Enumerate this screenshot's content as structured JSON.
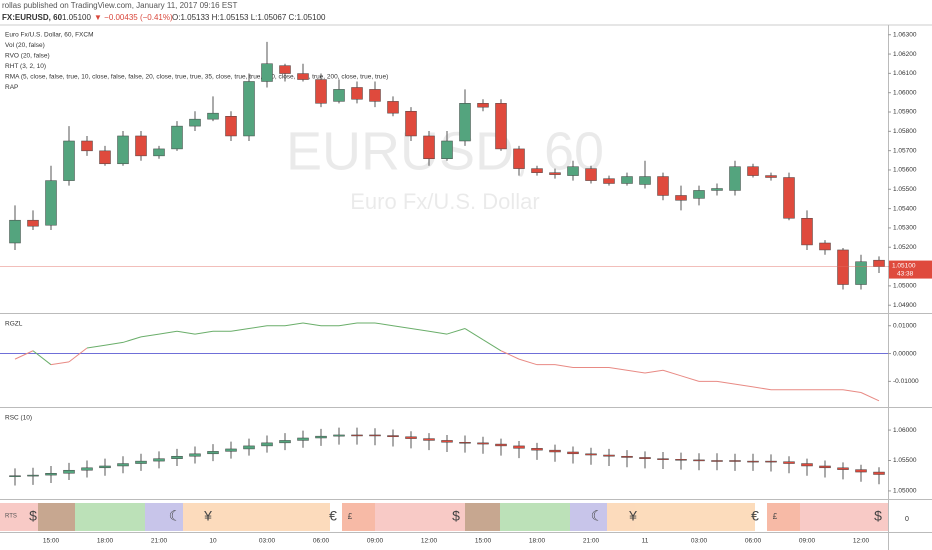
{
  "header": {
    "published": "rollas published on TradingView.com, January 11, 2017 09:16 EST",
    "symbol": "FX:EURUSD, 60",
    "price": "1.05100",
    "change": "▼ −0.00435 (−0.41%)",
    "ohlc": "O:1.05133 H:1.05153 L:1.05067 C:1.05100"
  },
  "chart_data": [
    {
      "type": "candlestick",
      "watermark": "EURUSD, 60",
      "watermark_sub": "Euro Fx/U.S. Dollar",
      "legend_lines": [
        "Euro Fx/U.S. Dollar, 60, FXCM",
        "Vol (20, false)",
        "RVO (20, false)",
        "RHT (3, 2, 10)",
        "RMA (5, close, false, true, 10, close, false, false, 20, close, true, true, 35, close, true, true, 100, close, true, true, 200, close, true, true)",
        "RAP"
      ],
      "countdown": "43:38",
      "up_color": "#54a47e",
      "down_color": "#df4a3d",
      "categories": [
        null,
        null,
        "15:00",
        null,
        null,
        "18:00",
        null,
        null,
        "21:00",
        null,
        null,
        "10",
        null,
        null,
        "03:00",
        null,
        null,
        "06:00",
        null,
        null,
        "09:00",
        null,
        null,
        "12:00",
        null,
        null,
        "15:00",
        null,
        null,
        "18:00",
        null,
        null,
        "21:00",
        null,
        null,
        "11",
        null,
        null,
        "03:00",
        null,
        null,
        "06:00",
        null,
        null,
        "09:00",
        null,
        null,
        "12:00",
        null
      ],
      "open": [
        1.05222,
        1.0534,
        1.05314,
        1.05545,
        1.0575,
        1.05699,
        1.05632,
        1.05776,
        1.05673,
        1.05709,
        1.05827,
        1.05863,
        1.05878,
        1.05776,
        1.06058,
        1.0614,
        1.06099,
        1.06068,
        1.05955,
        1.06027,
        1.06017,
        1.05955,
        1.05904,
        1.05776,
        1.05658,
        1.0575,
        1.05945,
        1.05945,
        1.05709,
        1.05607,
        1.05586,
        1.05571,
        1.05607,
        1.05555,
        1.0553,
        1.05525,
        1.05566,
        1.05468,
        1.05453,
        1.05494,
        1.05494,
        1.05617,
        1.05571,
        1.05561,
        1.0535,
        1.05222,
        1.05186,
        1.05007,
        1.05133
      ],
      "high": [
        1.05417,
        1.05391,
        1.05622,
        1.05827,
        1.05776,
        1.05725,
        1.05802,
        1.05802,
        1.05725,
        1.05853,
        1.05904,
        1.05981,
        1.05904,
        1.06099,
        1.06263,
        1.0615,
        1.0615,
        1.06099,
        1.06068,
        1.06058,
        1.06058,
        1.05981,
        1.05925,
        1.05802,
        1.05802,
        1.06017,
        1.05966,
        1.05966,
        1.05725,
        1.05622,
        1.05607,
        1.05648,
        1.05622,
        1.05571,
        1.05586,
        1.05648,
        1.05586,
        1.05519,
        1.05519,
        1.0553,
        1.05648,
        1.05632,
        1.05586,
        1.05586,
        1.05391,
        1.05237,
        1.05196,
        1.05161,
        1.05153
      ],
      "low": [
        1.05186,
        1.05289,
        1.05289,
        1.05519,
        1.05673,
        1.05622,
        1.05622,
        1.05648,
        1.05658,
        1.05699,
        1.05802,
        1.05853,
        1.0575,
        1.0575,
        1.06027,
        1.06058,
        1.06058,
        1.05925,
        1.05945,
        1.05945,
        1.05925,
        1.05878,
        1.0575,
        1.05622,
        1.05648,
        1.05725,
        1.05904,
        1.05699,
        1.05571,
        1.05571,
        1.05555,
        1.05545,
        1.0553,
        1.05519,
        1.05519,
        1.05504,
        1.05443,
        1.05391,
        1.05417,
        1.05468,
        1.05468,
        1.05561,
        1.05545,
        1.0534,
        1.05186,
        1.05161,
        1.04981,
        1.04981,
        1.05067
      ],
      "close": [
        1.0534,
        1.05309,
        1.05545,
        1.0575,
        1.05699,
        1.05632,
        1.05776,
        1.05673,
        1.05709,
        1.05827,
        1.05863,
        1.05894,
        1.05776,
        1.06058,
        1.0615,
        1.06099,
        1.06068,
        1.05945,
        1.06017,
        1.05966,
        1.05955,
        1.05894,
        1.05776,
        1.05658,
        1.0575,
        1.05945,
        1.05925,
        1.05709,
        1.05607,
        1.05586,
        1.05576,
        1.05617,
        1.05545,
        1.0553,
        1.05566,
        1.05566,
        1.05468,
        1.05443,
        1.05494,
        1.05504,
        1.05617,
        1.05571,
        1.05561,
        1.0535,
        1.05212,
        1.05186,
        1.05007,
        1.05125,
        1.051
      ],
      "ylim": [
        1.0487,
        1.0634
      ],
      "yticks": [
        {
          "value": 1.049,
          "label": "1.04900"
        },
        {
          "value": 1.05,
          "label": "1.05000"
        },
        {
          "value": 1.051,
          "label": "1.05100"
        },
        {
          "value": 1.052,
          "label": "1.05200"
        },
        {
          "value": 1.053,
          "label": "1.05300"
        },
        {
          "value": 1.054,
          "label": "1.05400"
        },
        {
          "value": 1.055,
          "label": "1.05500"
        },
        {
          "value": 1.056,
          "label": "1.05600"
        },
        {
          "value": 1.057,
          "label": "1.05700"
        },
        {
          "value": 1.058,
          "label": "1.05800"
        },
        {
          "value": 1.059,
          "label": "1.05900"
        },
        {
          "value": 1.06,
          "label": "1.06000"
        },
        {
          "value": 1.061,
          "label": "1.06100"
        },
        {
          "value": 1.062,
          "label": "1.06200"
        },
        {
          "value": 1.063,
          "label": "1.06300"
        }
      ]
    },
    {
      "type": "line",
      "title": "RGZL",
      "up_color": "#6aae6a",
      "down_color": "#e88a84",
      "zero_color": "#6f6fd8",
      "values": [
        -0.002,
        0.001,
        -0.004,
        -0.003,
        0.002,
        0.003,
        0.004,
        0.006,
        0.007,
        0.008,
        0.007,
        0.008,
        0.008,
        0.009,
        0.01,
        0.01,
        0.011,
        0.01,
        0.01,
        0.011,
        0.011,
        0.01,
        0.009,
        0.008,
        0.007,
        0.009,
        0.005,
        0.001,
        -0.002,
        -0.004,
        -0.004,
        -0.005,
        -0.005,
        -0.005,
        -0.006,
        -0.007,
        -0.006,
        -0.008,
        -0.01,
        -0.01,
        -0.011,
        -0.012,
        -0.013,
        -0.013,
        -0.013,
        -0.013,
        -0.013,
        -0.014,
        -0.017
      ],
      "ylim": [
        -0.0185,
        0.0135
      ],
      "yticks": [
        {
          "value": -0.01,
          "label": "-0.01000"
        },
        {
          "value": 0,
          "label": "0.00000"
        },
        {
          "value": 0.01,
          "label": "0.01000"
        }
      ]
    },
    {
      "type": "candlestick",
      "title": "RSC (10)",
      "up_color": "#54a47e",
      "down_color": "#df4a3d",
      "open": [
        1.0524,
        1.0525,
        1.0526,
        1.0529,
        1.0534,
        1.0538,
        1.0541,
        1.0545,
        1.0549,
        1.0553,
        1.0557,
        1.0561,
        1.0565,
        1.0569,
        1.0574,
        1.0579,
        1.0583,
        1.0587,
        1.059,
        1.0592,
        1.0592,
        1.0591,
        1.0589,
        1.0586,
        1.0583,
        1.058,
        1.0579,
        1.0577,
        1.0574,
        1.057,
        1.0567,
        1.0564,
        1.0561,
        1.0559,
        1.0557,
        1.0555,
        1.0553,
        1.0552,
        1.0551,
        1.055,
        1.055,
        1.0549,
        1.0549,
        1.0548,
        1.0545,
        1.0541,
        1.0538,
        1.0535,
        1.0531
      ],
      "high": [
        1.0537,
        1.0538,
        1.0541,
        1.0546,
        1.055,
        1.0553,
        1.0557,
        1.0561,
        1.0565,
        1.0569,
        1.0573,
        1.0577,
        1.0581,
        1.0586,
        1.0591,
        1.0595,
        1.0599,
        1.0602,
        1.0604,
        1.0604,
        1.0603,
        1.0601,
        1.0598,
        1.0595,
        1.0592,
        1.0591,
        1.0589,
        1.0586,
        1.0582,
        1.0579,
        1.0576,
        1.0573,
        1.0571,
        1.0569,
        1.0567,
        1.0565,
        1.0564,
        1.0563,
        1.0562,
        1.0562,
        1.0561,
        1.0561,
        1.056,
        1.0557,
        1.0553,
        1.055,
        1.0547,
        1.0543,
        1.0539
      ],
      "low": [
        1.0509,
        1.051,
        1.0513,
        1.0518,
        1.0522,
        1.0525,
        1.0529,
        1.0533,
        1.0537,
        1.0541,
        1.0545,
        1.0549,
        1.0553,
        1.0558,
        1.0563,
        1.0567,
        1.0571,
        1.0574,
        1.0576,
        1.0576,
        1.0575,
        1.0573,
        1.057,
        1.0567,
        1.0564,
        1.0563,
        1.0561,
        1.0558,
        1.0554,
        1.0551,
        1.0548,
        1.0545,
        1.0543,
        1.0541,
        1.0539,
        1.0537,
        1.0536,
        1.0535,
        1.0534,
        1.0534,
        1.0533,
        1.0533,
        1.0532,
        1.0529,
        1.0525,
        1.0522,
        1.0519,
        1.0515,
        1.0511
      ],
      "close": [
        1.0525,
        1.0526,
        1.0529,
        1.0534,
        1.0538,
        1.0541,
        1.0545,
        1.0549,
        1.0553,
        1.0557,
        1.0561,
        1.0565,
        1.0569,
        1.0574,
        1.0579,
        1.0583,
        1.0587,
        1.059,
        1.0592,
        1.0592,
        1.0591,
        1.0589,
        1.0586,
        1.0583,
        1.058,
        1.0579,
        1.0577,
        1.0574,
        1.057,
        1.0567,
        1.0564,
        1.0561,
        1.0559,
        1.0557,
        1.0555,
        1.0553,
        1.0552,
        1.0551,
        1.055,
        1.055,
        1.0549,
        1.0549,
        1.0548,
        1.0545,
        1.0541,
        1.0538,
        1.0535,
        1.0531,
        1.0527
      ],
      "ylim": [
        1.049,
        1.0633
      ],
      "yticks": [
        {
          "value": 1.05,
          "label": "1.05000"
        },
        {
          "value": 1.055,
          "label": "1.05500"
        },
        {
          "value": 1.06,
          "label": "1.06000"
        }
      ]
    }
  ],
  "rts": {
    "title": "RTS",
    "symbols": [
      "$",
      "☾",
      "¥",
      "€",
      "£",
      "$",
      "☾",
      "¥",
      "€",
      "£",
      "$"
    ],
    "tick": "0"
  }
}
